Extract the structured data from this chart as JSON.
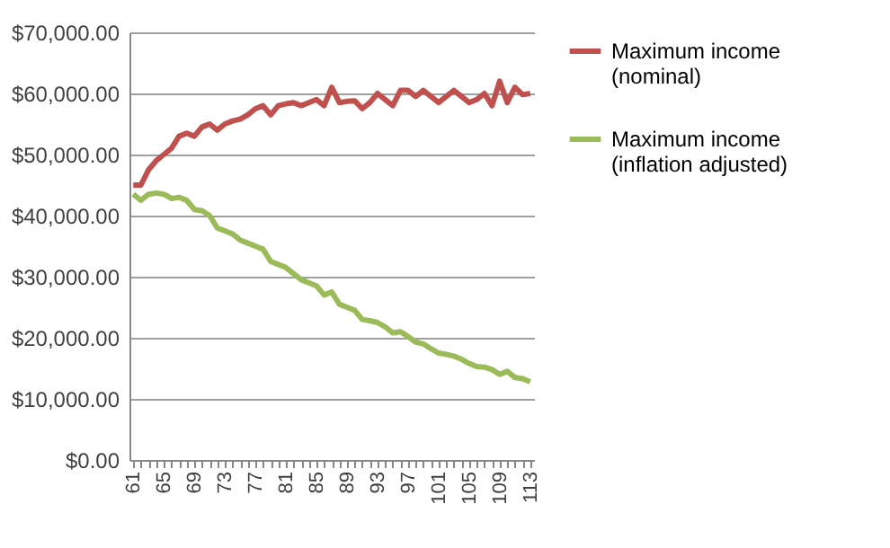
{
  "chart_data": {
    "type": "line",
    "categories": [
      "61",
      null,
      null,
      null,
      "65",
      null,
      null,
      null,
      "69",
      null,
      null,
      null,
      "73",
      null,
      null,
      null,
      "77",
      null,
      null,
      null,
      "81",
      null,
      null,
      null,
      "85",
      null,
      null,
      null,
      "89",
      null,
      null,
      null,
      "93",
      null,
      null,
      null,
      "97",
      null,
      null,
      null,
      "101",
      null,
      null,
      null,
      "105",
      null,
      null,
      null,
      "109",
      null,
      null,
      null,
      "113"
    ],
    "series": [
      {
        "name": "Maximum income (nominal)",
        "color": "#c0504d",
        "values": [
          45000,
          45000,
          47500,
          49000,
          50000,
          51000,
          53000,
          53500,
          53000,
          54500,
          55000,
          54000,
          55000,
          55500,
          55800,
          56500,
          57500,
          58000,
          56500,
          58000,
          58300,
          58500,
          58000,
          58500,
          59000,
          58000,
          61000,
          58500,
          58700,
          58800,
          57500,
          58500,
          60000,
          59000,
          58000,
          60500,
          60500,
          59500,
          60500,
          59500,
          58500,
          59500,
          60500,
          59500,
          58500,
          59000,
          60000,
          58000,
          62000,
          58500,
          61000,
          59800,
          60000
        ]
      },
      {
        "name": "Maximum income (inflation adjusted)",
        "color": "#9bbb59",
        "values": [
          43500,
          42500,
          43500,
          43700,
          43500,
          42800,
          43000,
          42500,
          41000,
          40800,
          40000,
          38000,
          37500,
          37000,
          36000,
          35500,
          35000,
          34500,
          32500,
          32000,
          31500,
          30500,
          29500,
          29000,
          28500,
          27000,
          27500,
          25500,
          25000,
          24500,
          23000,
          22800,
          22500,
          21800,
          20800,
          21000,
          20200,
          19300,
          19000,
          18200,
          17500,
          17300,
          17000,
          16500,
          15800,
          15300,
          15200,
          14800,
          14000,
          14500,
          13500,
          13300,
          12800
        ]
      }
    ],
    "ylim": [
      0,
      70000
    ],
    "yticks": [
      {
        "value": 0,
        "label": "$0.00"
      },
      {
        "value": 10000,
        "label": "$10,000.00"
      },
      {
        "value": 20000,
        "label": "$20,000.00"
      },
      {
        "value": 30000,
        "label": "$30,000.00"
      },
      {
        "value": 40000,
        "label": "$40,000.00"
      },
      {
        "value": 50000,
        "label": "$50,000.00"
      },
      {
        "value": 60000,
        "label": "$60,000.00"
      },
      {
        "value": 70000,
        "label": "$70,000.00"
      }
    ],
    "grid": "y",
    "legend": "right",
    "marker": "none",
    "line_style": "solid"
  }
}
